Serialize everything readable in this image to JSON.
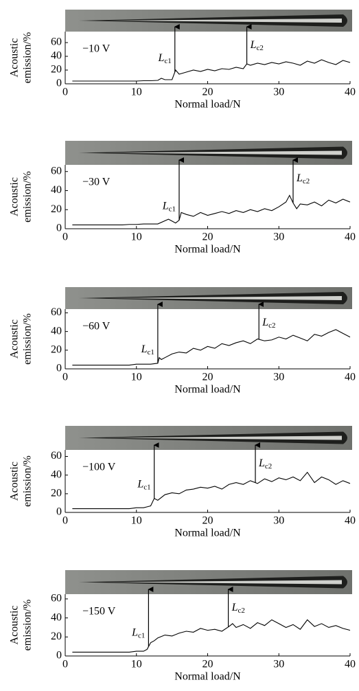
{
  "chart_data": [
    {
      "type": "line",
      "annotation_text": "−10 V",
      "xlabel": "Normal load/N",
      "ylabel": [
        "Acoustic",
        "emission/%"
      ],
      "xlim": [
        0,
        40
      ],
      "ylim": [
        0,
        76
      ],
      "xticks": [
        0,
        10,
        20,
        30,
        40
      ],
      "yticks": [
        0,
        20,
        40,
        60
      ],
      "color": "#000000",
      "x": [
        1,
        2,
        3,
        4,
        5,
        6,
        7,
        8,
        9,
        10,
        11,
        12,
        13,
        13.5,
        14,
        15,
        15.5,
        16,
        17,
        18,
        19,
        20,
        21,
        22,
        23,
        24,
        25,
        25.5,
        26,
        27,
        28,
        29,
        30,
        31,
        32,
        33,
        34,
        35,
        36,
        37,
        38,
        39,
        40
      ],
      "values": [
        4,
        4,
        4,
        4,
        4,
        4,
        4,
        4,
        4,
        4,
        4.5,
        4.5,
        5,
        8,
        6,
        6,
        20,
        14,
        17,
        20,
        18,
        21,
        19,
        22,
        21,
        24,
        22,
        29,
        27,
        30,
        28,
        31,
        29,
        32,
        30,
        27,
        33,
        30,
        35,
        31,
        28,
        34,
        31
      ],
      "critical_loads": [
        {
          "symbol": "L",
          "subscript": "c1",
          "x": 15.4
        },
        {
          "symbol": "L",
          "subscript": "c2",
          "x": 25.5
        }
      ]
    },
    {
      "type": "line",
      "annotation_text": "−30 V",
      "xlabel": "Normal load/N",
      "ylabel": [
        "Acoustic",
        "emission/%"
      ],
      "xlim": [
        0,
        40
      ],
      "ylim": [
        0,
        67
      ],
      "xticks": [
        0,
        10,
        20,
        30,
        40
      ],
      "yticks": [
        0,
        20,
        40,
        60
      ],
      "color": "#000000",
      "x": [
        1,
        2,
        3,
        4,
        5,
        6,
        7,
        8,
        9,
        10,
        11,
        12,
        13,
        14.5,
        15,
        15.5,
        16,
        16.3,
        17,
        18,
        19,
        20,
        21,
        22,
        23,
        24,
        25,
        26,
        27,
        28,
        29,
        30,
        31,
        31.5,
        32,
        32.5,
        33,
        34,
        35,
        36,
        37,
        38,
        39,
        40
      ],
      "values": [
        4,
        4,
        4,
        4,
        4,
        4,
        4,
        4,
        4.5,
        4.5,
        5,
        5,
        5,
        10,
        8,
        6,
        9,
        17,
        15,
        13,
        17,
        14,
        16,
        18,
        16,
        19,
        17,
        20,
        18,
        21,
        19,
        23,
        28,
        35,
        27,
        21,
        26,
        25,
        28,
        24,
        30,
        27,
        31,
        28
      ],
      "critical_loads": [
        {
          "symbol": "L",
          "subscript": "c1",
          "x": 16.0
        },
        {
          "symbol": "L",
          "subscript": "c2",
          "x": 32.0
        }
      ]
    },
    {
      "type": "line",
      "annotation_text": "−60 V",
      "xlabel": "Normal load/N",
      "ylabel": [
        "Acoustic",
        "emission/%"
      ],
      "xlim": [
        0,
        40
      ],
      "ylim": [
        0,
        64
      ],
      "xticks": [
        0,
        10,
        20,
        30,
        40
      ],
      "yticks": [
        0,
        20,
        40,
        60
      ],
      "color": "#000000",
      "x": [
        1,
        2,
        3,
        4,
        5,
        6,
        7,
        8,
        9,
        10,
        11,
        12,
        13,
        13.2,
        13.5,
        14,
        15,
        16,
        17,
        18,
        19,
        20,
        21,
        22,
        23,
        24,
        25,
        26,
        27,
        28,
        29,
        30,
        31,
        32,
        33,
        34,
        35,
        36,
        37,
        38,
        39,
        40
      ],
      "values": [
        4,
        4,
        4,
        4,
        4,
        4,
        4,
        4,
        4,
        5,
        5,
        5,
        6,
        12,
        10,
        12,
        16,
        18,
        17,
        22,
        20,
        24,
        22,
        27,
        25,
        28,
        30,
        27,
        32,
        30,
        31,
        34,
        32,
        36,
        33,
        30,
        37,
        35,
        39,
        42,
        38,
        34
      ],
      "critical_loads": [
        {
          "symbol": "L",
          "subscript": "c1",
          "x": 13.0
        },
        {
          "symbol": "L",
          "subscript": "c2",
          "x": 27.2
        }
      ]
    },
    {
      "type": "line",
      "annotation_text": "−100 V",
      "xlabel": "Normal load/N",
      "ylabel": [
        "Acoustic",
        "emission/%"
      ],
      "xlim": [
        0,
        40
      ],
      "ylim": [
        0,
        67
      ],
      "xticks": [
        0,
        10,
        20,
        30,
        40
      ],
      "yticks": [
        0,
        20,
        40,
        60
      ],
      "color": "#000000",
      "x": [
        1,
        2,
        3,
        4,
        5,
        6,
        7,
        8,
        9,
        10,
        11,
        11.5,
        12,
        12.5,
        13,
        14,
        15,
        16,
        17,
        18,
        19,
        20,
        21,
        22,
        23,
        24,
        25,
        26,
        27,
        28,
        29,
        30,
        31,
        32,
        33,
        34,
        35,
        36,
        37,
        38,
        39,
        40
      ],
      "values": [
        4,
        4,
        4,
        4,
        4,
        4,
        4,
        4,
        4,
        5,
        5,
        6,
        7,
        15,
        13,
        19,
        21,
        20,
        24,
        25,
        27,
        26,
        28,
        25,
        30,
        32,
        30,
        34,
        31,
        36,
        33,
        37,
        35,
        38,
        34,
        43,
        32,
        38,
        35,
        30,
        34,
        31
      ],
      "critical_loads": [
        {
          "symbol": "L",
          "subscript": "c1",
          "x": 12.5
        },
        {
          "symbol": "L",
          "subscript": "c2",
          "x": 26.7
        }
      ]
    },
    {
      "type": "line",
      "annotation_text": "−150 V",
      "xlabel": "Normal load/N",
      "ylabel": [
        "Acoustic",
        "emission/%"
      ],
      "xlim": [
        0,
        40
      ],
      "ylim": [
        0,
        65
      ],
      "xticks": [
        0,
        10,
        20,
        30,
        40
      ],
      "yticks": [
        0,
        20,
        40,
        60
      ],
      "color": "#000000",
      "x": [
        1,
        2,
        3,
        4,
        5,
        6,
        7,
        8,
        9,
        10,
        11,
        11.5,
        12,
        12.5,
        13,
        14,
        15,
        16,
        17,
        18,
        19,
        20,
        21,
        22,
        23,
        23.5,
        24,
        25,
        26,
        27,
        28,
        29,
        30,
        31,
        32,
        33,
        34,
        35,
        36,
        37,
        38,
        39,
        40
      ],
      "values": [
        4,
        4,
        4,
        4,
        4,
        4,
        4,
        4,
        4,
        5,
        5,
        7,
        14,
        16,
        19,
        22,
        21,
        24,
        26,
        25,
        29,
        27,
        28,
        26,
        31,
        34,
        30,
        33,
        29,
        35,
        32,
        38,
        34,
        30,
        33,
        28,
        38,
        31,
        34,
        30,
        32,
        29,
        27
      ],
      "critical_loads": [
        {
          "symbol": "L",
          "subscript": "c1",
          "x": 11.7
        },
        {
          "symbol": "L",
          "subscript": "c2",
          "x": 22.9
        }
      ]
    }
  ]
}
